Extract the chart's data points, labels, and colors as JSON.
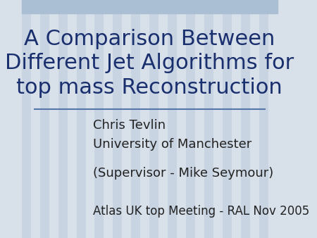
{
  "title_line1": "A Comparison Between",
  "title_line2": "Different Jet Algorithms for",
  "title_line3": "top mass Reconstruction",
  "title_color": "#1a2f6e",
  "title_fontsize": 22,
  "line1": "Chris Tevlin",
  "line2": "University of Manchester",
  "line3": "(Supervisor - Mike Seymour)",
  "line4": "Atlas UK top Meeting - RAL Nov 2005",
  "body_color": "#222222",
  "body_fontsize": 13,
  "bg_top_color": "#aabfd4",
  "bg_main_color": "#d8e0ea",
  "bg_stripe_color": "#c8d4e2",
  "header_bar_height": 0.055,
  "divider_color": "#5577aa",
  "divider_linewidth": 1.5
}
